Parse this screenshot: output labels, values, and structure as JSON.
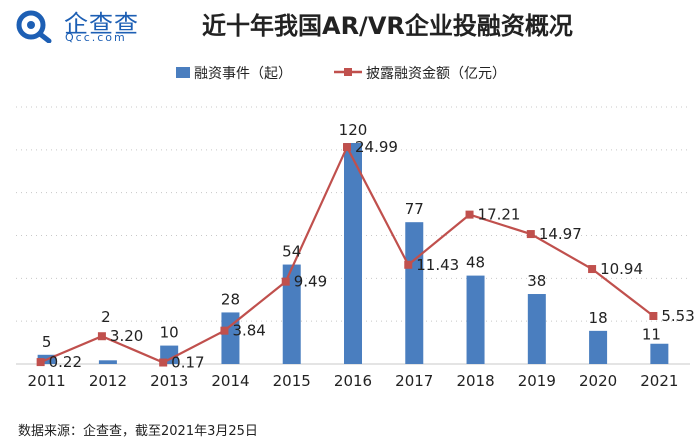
{
  "logo": {
    "cn_text": "企查查",
    "en_text": "Qcc.com"
  },
  "title": "近十年我国AR/VR企业投融资概况",
  "source_note": "数据来源：企查查，截至2021年3月25日",
  "colors": {
    "bar": "#4a7ebf",
    "line": "#c0504d",
    "logo": "#1d5fb4"
  },
  "chart_data": {
    "type": "bar+line",
    "categories": [
      "2011",
      "2012",
      "2013",
      "2014",
      "2015",
      "2016",
      "2017",
      "2018",
      "2019",
      "2020",
      "2021"
    ],
    "series": [
      {
        "name": "融资事件（起）",
        "type": "bar",
        "values": [
          5,
          2,
          10,
          28,
          54,
          120,
          77,
          48,
          38,
          18,
          11
        ],
        "labels": [
          "5",
          "2",
          "10",
          "28",
          "54",
          "120",
          "77",
          "48",
          "38",
          "18",
          "11"
        ]
      },
      {
        "name": "披露融资金额（亿元）",
        "type": "line",
        "values": [
          0.22,
          3.2,
          0.17,
          3.84,
          9.49,
          24.99,
          11.43,
          17.21,
          14.97,
          10.94,
          5.53
        ],
        "labels": [
          "0.22",
          "3.20",
          "0.17",
          "3.84",
          "9.49",
          "24.99",
          "11.43",
          "17.21",
          "14.97",
          "10.94",
          "5.53"
        ]
      }
    ],
    "legend": "top-center",
    "ylim_bars": [
      0,
      120
    ],
    "ylim_line": [
      0,
      25
    ]
  }
}
